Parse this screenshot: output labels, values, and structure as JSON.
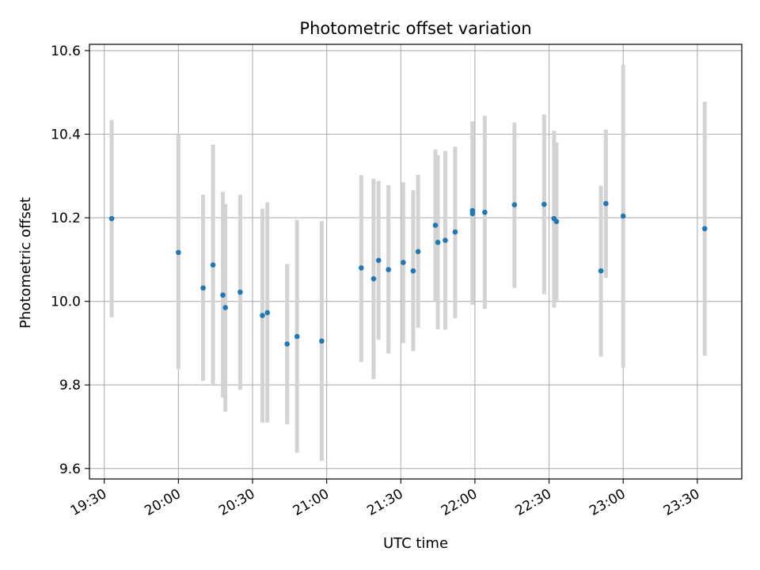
{
  "chart_data": {
    "type": "scatter",
    "title": "Photometric offset variation",
    "xlabel": "UTC time",
    "ylabel": "Photometric offset",
    "xlim": [
      "19:24",
      "23:48"
    ],
    "ylim": [
      9.575,
      10.615
    ],
    "grid": true,
    "x_ticks": [
      "19:30",
      "20:00",
      "20:30",
      "21:00",
      "21:30",
      "22:00",
      "22:30",
      "23:00",
      "23:30"
    ],
    "y_ticks": [
      9.6,
      9.8,
      10.0,
      10.2,
      10.4,
      10.6
    ],
    "y_tick_labels": [
      "9.6",
      "9.8",
      "10.0",
      "10.2",
      "10.4",
      "10.6"
    ],
    "colors": {
      "point": "#1f77b4",
      "errorbar": "#d3d3d3",
      "grid": "#b0b0b0"
    },
    "points": [
      {
        "x": "19:33",
        "y": 10.198,
        "lo": 9.962,
        "hi": 10.434
      },
      {
        "x": "20:00",
        "y": 10.117,
        "lo": 9.838,
        "hi": 10.4
      },
      {
        "x": "20:10",
        "y": 10.032,
        "lo": 9.81,
        "hi": 10.255
      },
      {
        "x": "20:14",
        "y": 10.087,
        "lo": 9.798,
        "hi": 10.375
      },
      {
        "x": "20:18",
        "y": 10.015,
        "lo": 9.77,
        "hi": 10.262
      },
      {
        "x": "20:19",
        "y": 9.985,
        "lo": 9.736,
        "hi": 10.233
      },
      {
        "x": "20:25",
        "y": 10.022,
        "lo": 9.788,
        "hi": 10.255
      },
      {
        "x": "20:34",
        "y": 9.966,
        "lo": 9.71,
        "hi": 10.222
      },
      {
        "x": "20:36",
        "y": 9.973,
        "lo": 9.71,
        "hi": 10.237
      },
      {
        "x": "20:44",
        "y": 9.898,
        "lo": 9.706,
        "hi": 10.089
      },
      {
        "x": "20:48",
        "y": 9.916,
        "lo": 9.638,
        "hi": 10.195
      },
      {
        "x": "20:58",
        "y": 9.905,
        "lo": 9.618,
        "hi": 10.192
      },
      {
        "x": "21:14",
        "y": 10.08,
        "lo": 9.855,
        "hi": 10.302
      },
      {
        "x": "21:19",
        "y": 10.054,
        "lo": 9.814,
        "hi": 10.293
      },
      {
        "x": "21:21",
        "y": 10.098,
        "lo": 9.908,
        "hi": 10.288
      },
      {
        "x": "21:25",
        "y": 10.076,
        "lo": 9.875,
        "hi": 10.278
      },
      {
        "x": "21:31",
        "y": 10.093,
        "lo": 9.9,
        "hi": 10.285
      },
      {
        "x": "21:35",
        "y": 10.073,
        "lo": 9.881,
        "hi": 10.266
      },
      {
        "x": "21:37",
        "y": 10.119,
        "lo": 9.937,
        "hi": 10.303
      },
      {
        "x": "21:44",
        "y": 10.182,
        "lo": 10.0,
        "hi": 10.363
      },
      {
        "x": "21:45",
        "y": 10.141,
        "lo": 9.933,
        "hi": 10.35
      },
      {
        "x": "21:48",
        "y": 10.146,
        "lo": 9.932,
        "hi": 10.36
      },
      {
        "x": "21:52",
        "y": 10.166,
        "lo": 9.96,
        "hi": 10.37
      },
      {
        "x": "21:59",
        "y": 10.217,
        "lo": 10.002,
        "hi": 10.431
      },
      {
        "x": "21:59",
        "y": 10.21,
        "lo": 9.992,
        "hi": 10.428
      },
      {
        "x": "22:04",
        "y": 10.213,
        "lo": 9.982,
        "hi": 10.444
      },
      {
        "x": "22:16",
        "y": 10.231,
        "lo": 10.032,
        "hi": 10.428
      },
      {
        "x": "22:28",
        "y": 10.232,
        "lo": 10.017,
        "hi": 10.447
      },
      {
        "x": "22:32",
        "y": 10.198,
        "lo": 9.985,
        "hi": 10.408
      },
      {
        "x": "22:33",
        "y": 10.191,
        "lo": 10.002,
        "hi": 10.38
      },
      {
        "x": "22:51",
        "y": 10.073,
        "lo": 9.868,
        "hi": 10.277
      },
      {
        "x": "22:53",
        "y": 10.234,
        "lo": 10.056,
        "hi": 10.411
      },
      {
        "x": "23:00",
        "y": 10.204,
        "lo": 9.841,
        "hi": 10.566
      },
      {
        "x": "23:33",
        "y": 10.174,
        "lo": 9.87,
        "hi": 10.478
      }
    ]
  }
}
